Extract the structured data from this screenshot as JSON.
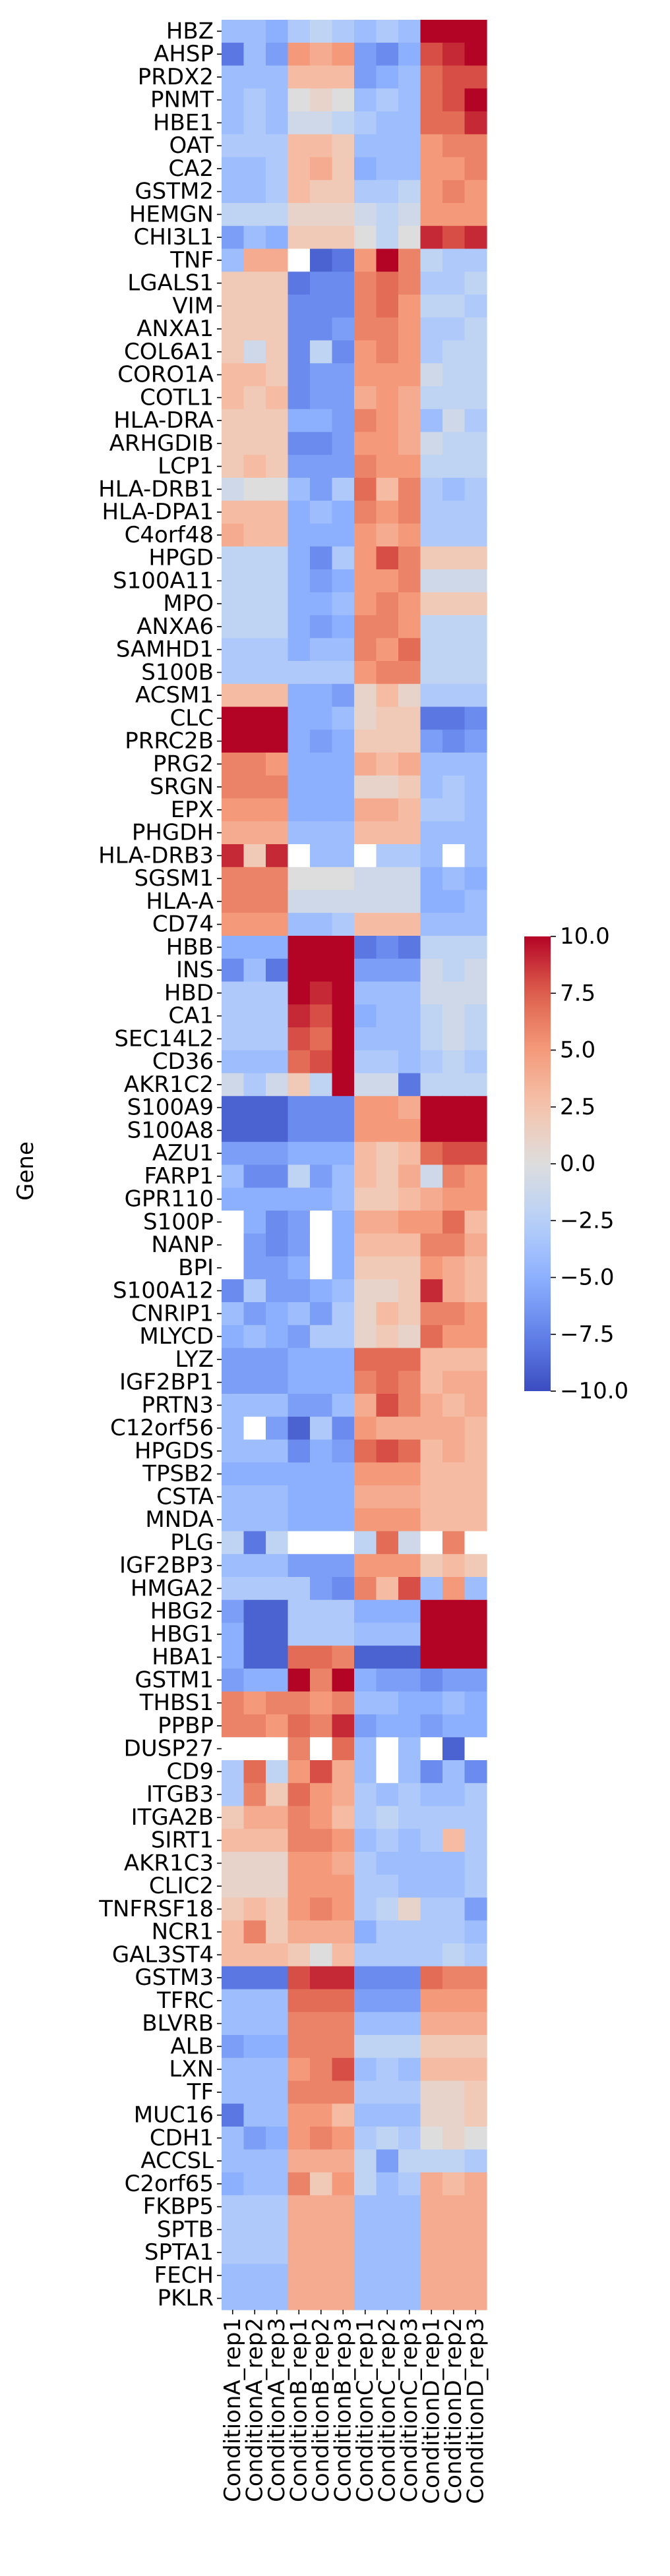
{
  "chart_data": {
    "type": "heatmap",
    "title": "",
    "xlabel": "",
    "ylabel": "Gene",
    "columns": [
      "ConditionA_rep1",
      "ConditionA_rep2",
      "ConditionA_rep3",
      "ConditionB_rep1",
      "ConditionB_rep2",
      "ConditionB_rep3",
      "ConditionC_rep1",
      "ConditionC_rep2",
      "ConditionC_rep3",
      "ConditionD_rep1",
      "ConditionD_rep2",
      "ConditionD_rep3"
    ],
    "rows": [
      "HBZ",
      "AHSP",
      "PRDX2",
      "PNMT",
      "HBE1",
      "OAT",
      "CA2",
      "GSTM2",
      "HEMGN",
      "CHI3L1",
      "TNF",
      "LGALS1",
      "VIM",
      "ANXA1",
      "COL6A1",
      "CORO1A",
      "COTL1",
      "HLA-DRA",
      "ARHGDIB",
      "LCP1",
      "HLA-DRB1",
      "HLA-DPA1",
      "C4orf48",
      "HPGD",
      "S100A11",
      "MPO",
      "ANXA6",
      "SAMHD1",
      "S100B",
      "ACSM1",
      "CLC",
      "PRRC2B",
      "PRG2",
      "SRGN",
      "EPX",
      "PHGDH",
      "HLA-DRB3",
      "SGSM1",
      "HLA-A",
      "CD74",
      "HBB",
      "INS",
      "HBD",
      "CA1",
      "SEC14L2",
      "CD36",
      "AKR1C2",
      "S100A9",
      "S100A8",
      "AZU1",
      "FARP1",
      "GPR110",
      "S100P",
      "NANP",
      "BPI",
      "S100A12",
      "CNRIP1",
      "MLYCD",
      "LYZ",
      "IGF2BP1",
      "PRTN3",
      "C12orf56",
      "HPGDS",
      "TPSB2",
      "CSTA",
      "MNDA",
      "PLG",
      "IGF2BP3",
      "HMGA2",
      "HBG2",
      "HBG1",
      "HBA1",
      "GSTM1",
      "THBS1",
      "PPBP",
      "DUSP27",
      "CD9",
      "ITGB3",
      "ITGA2B",
      "SIRT1",
      "AKR1C3",
      "CLIC2",
      "TNFRSF18",
      "NCR1",
      "GAL3ST4",
      "GSTM3",
      "TFRC",
      "BLVRB",
      "ALB",
      "LXN",
      "TF",
      "MUC16",
      "CDH1",
      "ACCSL",
      "C2orf65",
      "FKBP5",
      "SPTB",
      "SPTA1",
      "FECH",
      "PKLR"
    ],
    "values": [
      [
        -4,
        -4,
        -5,
        -3,
        -2,
        -3,
        -4,
        -3,
        -4,
        10,
        10,
        10
      ],
      [
        -8,
        -4,
        -6,
        5,
        4,
        5,
        -6,
        -7,
        -5,
        8,
        9,
        10
      ],
      [
        -4,
        -4,
        -4,
        3,
        3,
        3,
        -6,
        -5,
        -4,
        7,
        8,
        8
      ],
      [
        -4,
        -3,
        -4,
        0,
        1,
        0,
        -4,
        -3,
        -4,
        7,
        8,
        10
      ],
      [
        -4,
        -3,
        -4,
        -1,
        -1,
        -2,
        -3,
        -4,
        -4,
        7,
        7,
        9
      ],
      [
        -3,
        -3,
        -3,
        3,
        3,
        2,
        -4,
        -4,
        -4,
        5,
        6,
        6
      ],
      [
        -4,
        -4,
        -3,
        3,
        4,
        2,
        -5,
        -4,
        -4,
        5,
        5,
        6
      ],
      [
        -4,
        -4,
        -3,
        3,
        2,
        2,
        -3,
        -3,
        -2,
        5,
        6,
        5
      ],
      [
        -2,
        -2,
        -2,
        1,
        1,
        1,
        -1,
        -2,
        -1,
        5,
        5,
        5
      ],
      [
        -6,
        -4,
        -5,
        2,
        2,
        2,
        0,
        -2,
        0,
        9,
        8,
        9
      ],
      [
        -4,
        4,
        4,
        null,
        -9,
        -8,
        5,
        10,
        6,
        -2,
        -3,
        -3
      ],
      [
        2,
        2,
        2,
        -8,
        -7,
        -7,
        6,
        7,
        6,
        -3,
        -3,
        -2
      ],
      [
        2,
        2,
        2,
        -7,
        -7,
        -7,
        6,
        7,
        5,
        -2,
        -2,
        -3
      ],
      [
        2,
        2,
        2,
        -7,
        -7,
        -6,
        6,
        6,
        5,
        -3,
        -3,
        -2
      ],
      [
        2,
        -1,
        2,
        -7,
        -2,
        -7,
        5,
        6,
        5,
        -3,
        -2,
        -2
      ],
      [
        3,
        3,
        2,
        -7,
        -6,
        -6,
        5,
        5,
        5,
        -1,
        -2,
        -2
      ],
      [
        3,
        2,
        3,
        -7,
        -6,
        -6,
        4,
        5,
        4,
        -2,
        -2,
        -2
      ],
      [
        2,
        2,
        2,
        -5,
        -5,
        -6,
        6,
        5,
        4,
        -4,
        -1,
        -3
      ],
      [
        2,
        2,
        2,
        -7,
        -7,
        -6,
        5,
        5,
        4,
        -1,
        -2,
        -2
      ],
      [
        2,
        3,
        2,
        -6,
        -6,
        -6,
        6,
        5,
        5,
        -2,
        -2,
        -2
      ],
      [
        -1,
        0,
        0,
        -4,
        -6,
        -3,
        7,
        3,
        6,
        -3,
        -4,
        -3
      ],
      [
        3,
        3,
        3,
        -5,
        -4,
        -5,
        6,
        5,
        6,
        -3,
        -3,
        -3
      ],
      [
        4,
        3,
        3,
        -5,
        -5,
        -5,
        5,
        4,
        5,
        -3,
        -3,
        -3
      ],
      [
        -2,
        -2,
        -2,
        -5,
        -7,
        -3,
        5,
        8,
        6,
        2,
        2,
        2
      ],
      [
        -2,
        -2,
        -2,
        -5,
        -6,
        -5,
        5,
        5,
        6,
        -1,
        -1,
        -1
      ],
      [
        -2,
        -2,
        -2,
        -5,
        -5,
        -4,
        5,
        6,
        5,
        2,
        2,
        2
      ],
      [
        -2,
        -2,
        -2,
        -5,
        -6,
        -5,
        6,
        6,
        5,
        -2,
        -2,
        -2
      ],
      [
        -3,
        -3,
        -3,
        -5,
        -4,
        -4,
        6,
        5,
        7,
        -2,
        -2,
        -2
      ],
      [
        -3,
        -3,
        -3,
        -3,
        -3,
        -3,
        5,
        6,
        6,
        -2,
        -2,
        -2
      ],
      [
        3,
        3,
        3,
        -5,
        -5,
        -6,
        1,
        3,
        1,
        -3,
        -3,
        -3
      ],
      [
        10,
        10,
        10,
        -5,
        -5,
        -4,
        1,
        2,
        2,
        -8,
        -8,
        -7
      ],
      [
        10,
        10,
        10,
        -5,
        -6,
        -5,
        2,
        2,
        2,
        -6,
        -7,
        -6
      ],
      [
        6,
        6,
        5,
        -5,
        -5,
        -5,
        4,
        3,
        4,
        -4,
        -4,
        -4
      ],
      [
        6,
        6,
        6,
        -5,
        -5,
        -5,
        1,
        1,
        2,
        -4,
        -3,
        -4
      ],
      [
        5,
        5,
        5,
        -5,
        -5,
        -5,
        4,
        4,
        3,
        -3,
        -3,
        -4
      ],
      [
        4,
        4,
        4,
        -4,
        -4,
        -4,
        3,
        3,
        3,
        -4,
        -4,
        -4
      ],
      [
        9,
        2,
        9,
        null,
        -4,
        -4,
        null,
        -3,
        -3,
        -4,
        null,
        -4
      ],
      [
        6,
        6,
        6,
        0,
        0,
        0,
        -1,
        -1,
        -1,
        -5,
        -4,
        -5
      ],
      [
        6,
        6,
        6,
        -1,
        -1,
        -1,
        -1,
        -1,
        -1,
        -5,
        -5,
        -4
      ],
      [
        5,
        5,
        5,
        -4,
        -4,
        -3,
        3,
        3,
        3,
        -4,
        -4,
        -4
      ],
      [
        -5,
        -5,
        -5,
        10,
        10,
        10,
        -8,
        -7,
        -8,
        -2,
        -2,
        -2
      ],
      [
        -7,
        -4,
        -8,
        10,
        10,
        10,
        -6,
        -6,
        -6,
        -1,
        -2,
        -1
      ],
      [
        -3,
        -3,
        -3,
        10,
        9,
        10,
        -4,
        -4,
        -4,
        -1,
        -1,
        -1
      ],
      [
        -3,
        -3,
        -3,
        9,
        8,
        10,
        -5,
        -4,
        -4,
        -2,
        -1,
        -2
      ],
      [
        -3,
        -3,
        -3,
        8,
        7,
        10,
        -4,
        -4,
        -4,
        -2,
        -1,
        -2
      ],
      [
        -4,
        -4,
        -4,
        7,
        8,
        10,
        -3,
        -3,
        -4,
        -3,
        -2,
        -3
      ],
      [
        -1,
        -3,
        -1,
        2,
        -2,
        10,
        -1,
        -1,
        -8,
        -2,
        -2,
        -2
      ],
      [
        -9,
        -9,
        -9,
        -7,
        -7,
        -7,
        5,
        5,
        4,
        10,
        10,
        10
      ],
      [
        -9,
        -9,
        -9,
        -7,
        -7,
        -7,
        5,
        5,
        5,
        10,
        10,
        10
      ],
      [
        -6,
        -6,
        -6,
        -5,
        -5,
        -5,
        3,
        2,
        3,
        7,
        8,
        8
      ],
      [
        -4,
        -7,
        -7,
        -2,
        -6,
        -4,
        3,
        2,
        4,
        -1,
        6,
        5
      ],
      [
        -5,
        -5,
        -5,
        -5,
        -5,
        -4,
        2,
        2,
        3,
        4,
        5,
        5
      ],
      [
        null,
        -5,
        -7,
        -6,
        null,
        -5,
        4,
        4,
        5,
        5,
        7,
        3
      ],
      [
        null,
        -6,
        -7,
        -6,
        null,
        -5,
        3,
        3,
        3,
        6,
        6,
        4
      ],
      [
        null,
        -6,
        -6,
        -5,
        null,
        -5,
        2,
        2,
        2,
        5,
        4,
        3
      ],
      [
        -7,
        -3,
        -6,
        -6,
        -5,
        -4,
        1,
        1,
        2,
        9,
        4,
        3
      ],
      [
        -4,
        -6,
        -5,
        -4,
        -6,
        -3,
        1,
        3,
        2,
        6,
        6,
        5
      ],
      [
        -5,
        -4,
        -5,
        -6,
        -3,
        -3,
        1,
        2,
        1,
        7,
        5,
        5
      ],
      [
        -6,
        -6,
        -6,
        -5,
        -5,
        -5,
        7,
        7,
        7,
        3,
        3,
        3
      ],
      [
        -6,
        -6,
        -6,
        -5,
        -5,
        -5,
        6,
        7,
        6,
        3,
        4,
        4
      ],
      [
        -4,
        -4,
        -4,
        -6,
        -6,
        -4,
        4,
        8,
        6,
        4,
        3,
        4
      ],
      [
        -4,
        null,
        -6,
        -9,
        -3,
        -7,
        5,
        4,
        4,
        4,
        4,
        3
      ],
      [
        -4,
        -4,
        -4,
        -7,
        -5,
        -6,
        7,
        8,
        7,
        3,
        4,
        3
      ],
      [
        -5,
        -5,
        -5,
        -5,
        -5,
        -5,
        5,
        5,
        5,
        3,
        3,
        3
      ],
      [
        -4,
        -4,
        -4,
        -5,
        -5,
        -5,
        4,
        4,
        4,
        3,
        3,
        3
      ],
      [
        -4,
        -4,
        -4,
        -5,
        -5,
        -5,
        5,
        5,
        5,
        3,
        3,
        3
      ],
      [
        -2,
        -8,
        -2,
        null,
        null,
        null,
        -2,
        7,
        -1,
        null,
        6,
        null
      ],
      [
        -4,
        -4,
        -4,
        -6,
        -6,
        -6,
        5,
        5,
        5,
        2,
        3,
        2
      ],
      [
        -3,
        -3,
        -3,
        -3,
        -6,
        -7,
        6,
        3,
        8,
        -4,
        5,
        -4
      ],
      [
        -6,
        -9,
        -9,
        -3,
        -3,
        -3,
        -5,
        -5,
        -5,
        10,
        10,
        10
      ],
      [
        -5,
        -9,
        -9,
        -3,
        -3,
        -3,
        -4,
        -4,
        -4,
        10,
        10,
        10
      ],
      [
        -5,
        -9,
        -9,
        7,
        7,
        6,
        -9,
        -9,
        -9,
        10,
        10,
        10
      ],
      [
        -6,
        -5,
        -5,
        10,
        6,
        10,
        -5,
        -6,
        -6,
        -7,
        -6,
        -6
      ],
      [
        6,
        5,
        6,
        6,
        5,
        6,
        -4,
        -4,
        -5,
        -5,
        -4,
        -5
      ],
      [
        6,
        6,
        5,
        7,
        6,
        9,
        -6,
        -5,
        -5,
        -6,
        -5,
        -5
      ],
      [
        null,
        null,
        null,
        6,
        null,
        7,
        -4,
        null,
        -4,
        null,
        -9,
        null
      ],
      [
        -3,
        7,
        -2,
        5,
        8,
        4,
        -4,
        null,
        -4,
        -7,
        -4,
        -7
      ],
      [
        -3,
        6,
        2,
        7,
        5,
        4,
        -3,
        -4,
        -3,
        -4,
        -4,
        -3
      ],
      [
        2,
        4,
        4,
        6,
        5,
        3,
        -3,
        -2,
        -3,
        -3,
        -3,
        -3
      ],
      [
        3,
        3,
        3,
        6,
        6,
        5,
        -4,
        -3,
        -4,
        -3,
        3,
        -3
      ],
      [
        1,
        1,
        1,
        5,
        5,
        4,
        -3,
        -4,
        -4,
        -4,
        -4,
        -3
      ],
      [
        1,
        1,
        1,
        5,
        5,
        5,
        -3,
        -3,
        -4,
        -4,
        -4,
        -3
      ],
      [
        2,
        3,
        2,
        5,
        6,
        5,
        -3,
        -2,
        1,
        -3,
        -3,
        -6
      ],
      [
        3,
        6,
        2,
        4,
        4,
        4,
        -5,
        -3,
        -3,
        -3,
        -3,
        -4
      ],
      [
        3,
        3,
        3,
        2,
        0,
        3,
        -3,
        -3,
        -3,
        -3,
        -2,
        -3
      ],
      [
        -8,
        -8,
        -8,
        8,
        9,
        9,
        -7,
        -7,
        -7,
        7,
        6,
        6
      ],
      [
        -4,
        -4,
        -4,
        7,
        7,
        7,
        -6,
        -6,
        -6,
        5,
        5,
        5
      ],
      [
        -4,
        -4,
        -4,
        6,
        6,
        6,
        -4,
        -4,
        -4,
        4,
        4,
        4
      ],
      [
        -6,
        -5,
        -5,
        6,
        6,
        6,
        -2,
        -2,
        -2,
        2,
        2,
        2
      ],
      [
        -4,
        -4,
        -4,
        5,
        6,
        8,
        -4,
        -3,
        -4,
        3,
        3,
        3
      ],
      [
        -4,
        -4,
        -4,
        6,
        6,
        6,
        -3,
        -3,
        -3,
        1,
        1,
        2
      ],
      [
        -8,
        -4,
        -4,
        5,
        5,
        3,
        -4,
        -4,
        -4,
        1,
        1,
        2
      ],
      [
        -4,
        -6,
        -5,
        5,
        6,
        5,
        -3,
        -2,
        -3,
        0,
        1,
        0
      ],
      [
        -4,
        -4,
        -4,
        4,
        4,
        4,
        -2,
        -6,
        -2,
        -2,
        -2,
        -3
      ],
      [
        -5,
        -4,
        -4,
        6,
        2,
        5,
        -2,
        -4,
        -3,
        4,
        3,
        4
      ],
      [
        -3,
        -3,
        -3,
        4,
        4,
        4,
        -4,
        -4,
        -4,
        4,
        4,
        4
      ],
      [
        -3,
        -3,
        -3,
        4,
        4,
        4,
        -4,
        -4,
        -4,
        4,
        4,
        4
      ],
      [
        -3,
        -3,
        -3,
        4,
        4,
        4,
        -4,
        -4,
        -4,
        4,
        4,
        4
      ],
      [
        -4,
        -4,
        -4,
        4,
        4,
        4,
        -4,
        -4,
        -4,
        4,
        4,
        4
      ],
      [
        -4,
        -4,
        -4,
        4,
        4,
        4,
        -4,
        -4,
        -4,
        4,
        4,
        4
      ]
    ],
    "colormap": "coolwarm",
    "vmin": -10,
    "vmax": 10,
    "missing_color": "#ffffff",
    "colorbar": {
      "ticks": [
        10,
        7.5,
        5,
        2.5,
        0,
        -2.5,
        -5,
        -7.5,
        -10
      ],
      "tick_labels": [
        "10.0",
        "7.5",
        "5.0",
        "2.5",
        "0.0",
        "−2.5",
        "−5.0",
        "−7.5",
        "−10.0"
      ]
    },
    "legend": "right",
    "grid": false
  }
}
